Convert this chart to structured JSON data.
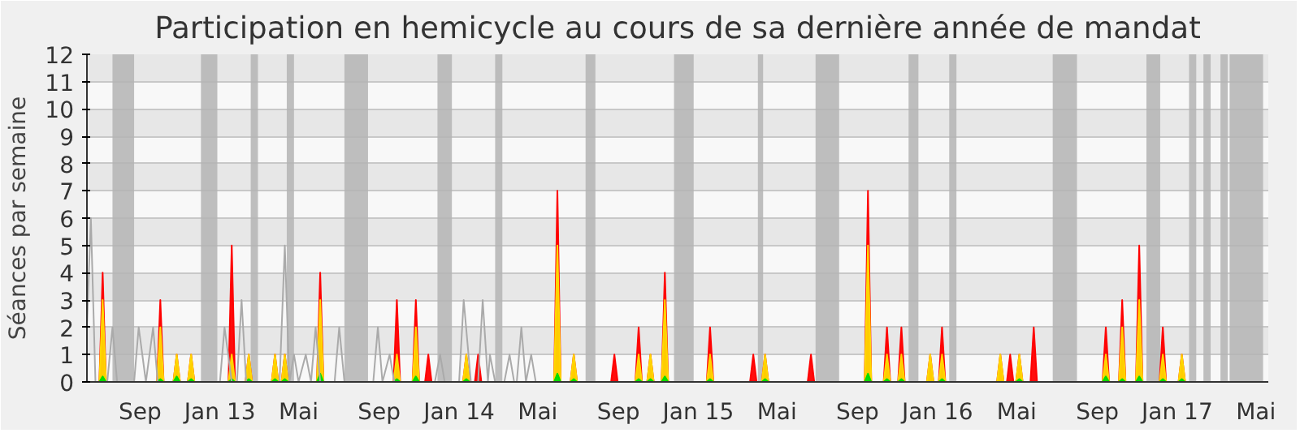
{
  "chart_data": {
    "type": "area",
    "title": "Participation en hemicycle au cours de sa dernière année de mandat",
    "ylabel": "Séances par semaine",
    "x": [
      "2012-07-01",
      "2012-07-06",
      "2012-07-11",
      "2012-09-27",
      "2012-10-02",
      "2012-10-07",
      "2012-10-22",
      "2012-10-27",
      "2012-11-01",
      "2012-11-13",
      "2012-11-18",
      "2012-11-23",
      "2013-01-14",
      "2013-01-19",
      "2013-01-24",
      "2013-02-09",
      "2013-02-14",
      "2013-02-19",
      "2013-03-21",
      "2013-03-26",
      "2013-03-31",
      "2013-04-05",
      "2013-04-10",
      "2013-04-15",
      "2013-05-29",
      "2013-06-03",
      "2013-06-08",
      "2013-09-23",
      "2013-09-28",
      "2013-10-03",
      "2013-10-22",
      "2013-10-27",
      "2013-11-01",
      "2013-11-10",
      "2013-11-15",
      "2013-11-20",
      "2014-01-07",
      "2014-01-12",
      "2014-01-17",
      "2014-01-25",
      "2014-01-30",
      "2014-02-04",
      "2014-05-26",
      "2014-05-31",
      "2014-06-05",
      "2014-06-20",
      "2014-06-25",
      "2014-06-30",
      "2014-08-21",
      "2014-08-26",
      "2014-08-31",
      "2014-09-27",
      "2014-10-02",
      "2014-10-07",
      "2014-10-15",
      "2014-10-20",
      "2014-10-25",
      "2014-11-06",
      "2014-11-11",
      "2014-11-16",
      "2015-01-14",
      "2015-01-19",
      "2015-01-24",
      "2015-03-21",
      "2015-03-26",
      "2015-03-31",
      "2015-04-08",
      "2015-04-13",
      "2015-04-18",
      "2015-06-17",
      "2015-06-22",
      "2015-06-27",
      "2015-09-12",
      "2015-09-17",
      "2015-09-22",
      "2015-10-11",
      "2015-10-16",
      "2015-10-21",
      "2015-11-02",
      "2015-11-07",
      "2015-11-12",
      "2015-12-16",
      "2015-12-21",
      "2015-12-26",
      "2016-01-03",
      "2016-01-08",
      "2016-01-13",
      "2016-04-01",
      "2016-04-06",
      "2016-04-11",
      "2016-04-16",
      "2016-04-21",
      "2016-04-26",
      "2016-04-30",
      "2016-05-05",
      "2016-05-10",
      "2016-05-22",
      "2016-05-27",
      "2016-06-01",
      "2016-09-09",
      "2016-09-14",
      "2016-09-19",
      "2016-10-04",
      "2016-10-09",
      "2016-10-14",
      "2016-10-30",
      "2016-11-04",
      "2016-11-09",
      "2016-12-05",
      "2016-12-10",
      "2016-12-15",
      "2017-01-03",
      "2017-01-08",
      "2017-01-13"
    ],
    "series": [
      {
        "color": "#ff0000",
        "values": [
          0,
          4,
          0,
          0,
          3,
          0,
          0,
          1,
          0,
          0,
          1,
          0,
          0,
          5,
          0,
          0,
          1,
          0,
          0,
          1,
          0,
          0,
          1,
          0,
          0,
          4,
          0,
          0,
          3,
          0,
          0,
          3,
          0,
          0,
          1,
          0,
          0,
          1,
          0,
          0,
          1,
          0,
          0,
          7,
          0,
          0,
          1,
          0,
          0,
          1,
          0,
          0,
          2,
          0,
          0,
          1,
          0,
          0,
          4,
          0,
          0,
          2,
          0,
          0,
          1,
          0,
          0,
          1,
          0,
          0,
          1,
          0,
          0,
          7,
          0,
          0,
          2,
          0,
          0,
          2,
          0,
          0,
          1,
          0,
          0,
          2,
          0,
          0,
          1,
          0,
          0,
          1,
          0,
          0,
          1,
          0,
          0,
          2,
          0,
          0,
          2,
          0,
          0,
          3,
          0,
          0,
          5,
          0,
          0,
          2,
          0,
          0,
          1,
          0
        ]
      },
      {
        "color": "#ffd700",
        "values": [
          0,
          3,
          0,
          0,
          2,
          0,
          0,
          1,
          0,
          0,
          1,
          0,
          0,
          1,
          0,
          0,
          1,
          0,
          0,
          1,
          0,
          0,
          1,
          0,
          0,
          3,
          0,
          0,
          1,
          0,
          0,
          2,
          0,
          0,
          0,
          0,
          0,
          1,
          0,
          0,
          0,
          0,
          0,
          5,
          0,
          0,
          1,
          0,
          0,
          0,
          0,
          0,
          1,
          0,
          0,
          1,
          0,
          0,
          3,
          0,
          0,
          1,
          0,
          0,
          0,
          0,
          0,
          1,
          0,
          0,
          0,
          0,
          0,
          5,
          0,
          0,
          1,
          0,
          0,
          1,
          0,
          0,
          1,
          0,
          0,
          1,
          0,
          0,
          1,
          0,
          0,
          0,
          0,
          0,
          1,
          0,
          0,
          0,
          0,
          0,
          1,
          0,
          0,
          2,
          0,
          0,
          3,
          0,
          0,
          1,
          0,
          0,
          1,
          0
        ]
      },
      {
        "color": "#00dd00",
        "values": [
          0,
          0.2,
          0,
          0,
          0.1,
          0,
          0,
          0.2,
          0,
          0,
          0.1,
          0,
          0,
          0.1,
          0,
          0,
          0.1,
          0,
          0,
          0.1,
          0,
          0,
          0.1,
          0,
          0,
          0.3,
          0,
          0,
          0.1,
          0,
          0,
          0.2,
          0,
          0,
          0,
          0,
          0,
          0.1,
          0,
          0,
          0,
          0,
          0,
          0.3,
          0,
          0,
          0.1,
          0,
          0,
          0,
          0,
          0,
          0.1,
          0,
          0,
          0.1,
          0,
          0,
          0.2,
          0,
          0,
          0.1,
          0,
          0,
          0,
          0,
          0,
          0.1,
          0,
          0,
          0,
          0,
          0,
          0.3,
          0,
          0,
          0.1,
          0,
          0,
          0.1,
          0,
          0,
          0,
          0,
          0,
          0.1,
          0,
          0,
          0,
          0,
          0,
          0,
          0,
          0,
          0.1,
          0,
          0,
          0,
          0,
          0,
          0.2,
          0,
          0,
          0.1,
          0,
          0,
          0.2,
          0,
          0,
          0.1,
          0,
          0,
          0.1,
          0
        ]
      },
      {
        "type": "line",
        "color": "#aaaaaa",
        "x": [
          "2012-06-12",
          "2012-06-18",
          "2012-06-25",
          "2012-07-13",
          "2012-07-21",
          "2012-07-28",
          "2012-08-23",
          "2012-08-30",
          "2012-09-10",
          "2012-09-21",
          "2012-09-28",
          "2013-01-01",
          "2013-01-08",
          "2013-01-19",
          "2013-01-27",
          "2013-02-03",
          "2013-02-10",
          "2013-04-02",
          "2013-04-10",
          "2013-04-17",
          "2013-04-24",
          "2013-05-01",
          "2013-05-12",
          "2013-05-20",
          "2013-05-27",
          "2013-06-03",
          "2013-06-25",
          "2013-07-02",
          "2013-07-10",
          "2013-08-23",
          "2013-08-30",
          "2013-09-06",
          "2013-09-17",
          "2013-09-24",
          "2013-11-25",
          "2013-12-03",
          "2013-12-10",
          "2014-01-01",
          "2014-01-08",
          "2014-01-19",
          "2014-01-30",
          "2014-02-06",
          "2014-02-14",
          "2014-02-17",
          "2014-02-25",
          "2014-03-11",
          "2014-03-19",
          "2014-03-26",
          "2014-03-30",
          "2014-04-06",
          "2014-04-13",
          "2014-04-21",
          "2014-04-28"
        ],
        "values": [
          2,
          6,
          0,
          0,
          2,
          0,
          0,
          2,
          0,
          2,
          0,
          0,
          2,
          0,
          0,
          3,
          0,
          0,
          5,
          0,
          1,
          0,
          1,
          0,
          2,
          0,
          0,
          2,
          0,
          0,
          2,
          0,
          1,
          0,
          0,
          1,
          0,
          0,
          3,
          0,
          0,
          3,
          0,
          1,
          0,
          0,
          1,
          0,
          0,
          2,
          0,
          1,
          0
        ]
      }
    ],
    "xlim": [
      "2012-06-12",
      "2017-05-20"
    ],
    "xticks": [
      {
        "value": "2012-09-01",
        "label": "Sep"
      },
      {
        "value": "2013-01-01",
        "label": "Jan 13"
      },
      {
        "value": "2013-05-01",
        "label": "Mai"
      },
      {
        "value": "2013-09-01",
        "label": "Sep"
      },
      {
        "value": "2014-01-01",
        "label": "Jan 14"
      },
      {
        "value": "2014-05-01",
        "label": "Mai"
      },
      {
        "value": "2014-09-01",
        "label": "Sep"
      },
      {
        "value": "2015-01-01",
        "label": "Jan 15"
      },
      {
        "value": "2015-05-01",
        "label": "Mai"
      },
      {
        "value": "2015-09-01",
        "label": "Sep"
      },
      {
        "value": "2016-01-01",
        "label": "Jan 16"
      },
      {
        "value": "2016-05-01",
        "label": "Mai"
      },
      {
        "value": "2016-09-01",
        "label": "Sep"
      },
      {
        "value": "2017-01-01",
        "label": "Jan 17"
      },
      {
        "value": "2017-05-01",
        "label": "Mai"
      }
    ],
    "ylim": [
      0,
      12
    ],
    "yticks": [
      0,
      1,
      2,
      3,
      4,
      5,
      6,
      7,
      8,
      9,
      10,
      11,
      12
    ],
    "grid": "y",
    "bands": [
      {
        "axis": "x",
        "from": "2012-07-21",
        "to": "2012-08-23",
        "color": "#b4b4b4"
      },
      {
        "axis": "x",
        "from": "2012-12-03",
        "to": "2012-12-28",
        "color": "#b4b4b4"
      },
      {
        "axis": "x",
        "from": "2013-02-17",
        "to": "2013-02-28",
        "color": "#b4b4b4"
      },
      {
        "axis": "x",
        "from": "2013-04-13",
        "to": "2013-04-24",
        "color": "#b4b4b4"
      },
      {
        "axis": "x",
        "from": "2013-07-10",
        "to": "2013-08-15",
        "color": "#b4b4b4"
      },
      {
        "axis": "x",
        "from": "2013-11-29",
        "to": "2013-12-21",
        "color": "#b4b4b4"
      },
      {
        "axis": "x",
        "from": "2014-02-25",
        "to": "2014-03-08",
        "color": "#b4b4b4"
      },
      {
        "axis": "x",
        "from": "2014-07-13",
        "to": "2014-07-28",
        "color": "#b4b4b4"
      },
      {
        "axis": "x",
        "from": "2014-11-25",
        "to": "2014-12-25",
        "color": "#b4b4b4"
      },
      {
        "axis": "x",
        "from": "2015-04-02",
        "to": "2015-04-10",
        "color": "#b4b4b4"
      },
      {
        "axis": "x",
        "from": "2015-06-29",
        "to": "2015-08-04",
        "color": "#b4b4b4"
      },
      {
        "axis": "x",
        "from": "2015-11-18",
        "to": "2015-12-03",
        "color": "#b4b4b4"
      },
      {
        "axis": "x",
        "from": "2016-01-19",
        "to": "2016-01-30",
        "color": "#b4b4b4"
      },
      {
        "axis": "x",
        "from": "2016-06-25",
        "to": "2016-08-01",
        "color": "#b4b4b4"
      },
      {
        "axis": "x",
        "from": "2016-11-15",
        "to": "2016-12-06",
        "color": "#b4b4b4"
      },
      {
        "axis": "x",
        "from": "2017-01-19",
        "to": "2017-01-30",
        "color": "#b4b4b4"
      },
      {
        "axis": "x",
        "from": "2017-02-10",
        "to": "2017-02-21",
        "color": "#b4b4b4"
      },
      {
        "axis": "x",
        "from": "2017-03-08",
        "to": "2017-03-19",
        "color": "#b4b4b4"
      },
      {
        "axis": "x",
        "from": "2017-03-22",
        "to": "2017-05-12",
        "color": "#b4b4b4"
      }
    ]
  }
}
